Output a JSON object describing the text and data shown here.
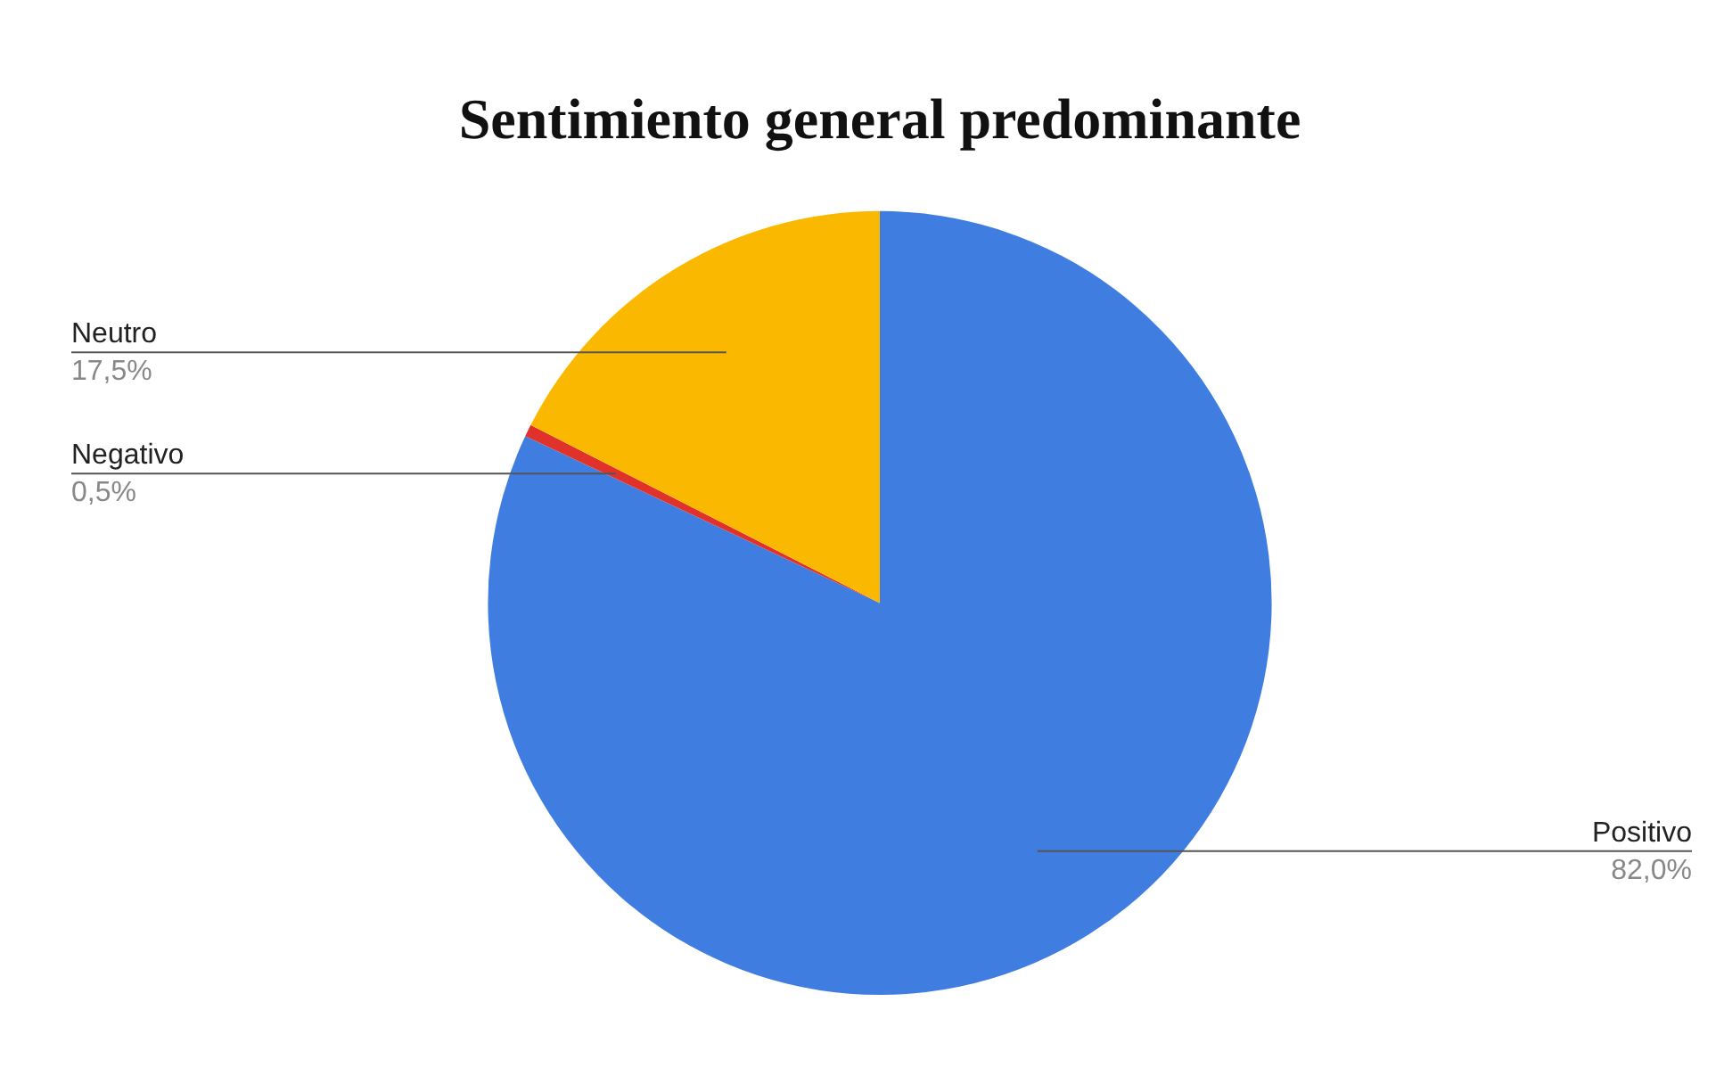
{
  "chart_data": {
    "type": "pie",
    "title": "Sentimiento general predominante",
    "categories": [
      "Positivo",
      "Negativo",
      "Neutro"
    ],
    "values": [
      82.0,
      0.5,
      17.5
    ],
    "colors": [
      "#3f7ee0",
      "#e0322a",
      "#fbb800"
    ],
    "value_labels": [
      "82,0%",
      "0,5%",
      "17,5%"
    ],
    "legend": false
  }
}
